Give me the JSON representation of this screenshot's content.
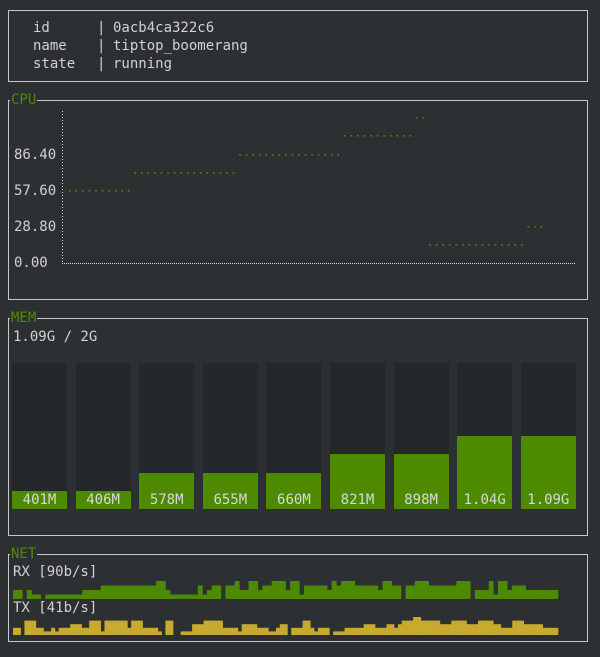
{
  "info": {
    "rows": [
      {
        "key": "id",
        "value": "0acb4ca322c6"
      },
      {
        "key": "name",
        "value": "tiptop_boomerang"
      },
      {
        "key": "state",
        "value": "running"
      }
    ]
  },
  "cpu": {
    "title": "CPU",
    "color": "#4e8a00",
    "chart_data": {
      "type": "scatter",
      "title": "CPU",
      "y_ticks": [
        "0.00",
        "28.80",
        "57.60",
        "86.40"
      ],
      "ylim": [
        0,
        120
      ],
      "values": [
        57.6,
        57.6,
        57.6,
        57.6,
        57.6,
        57.6,
        57.6,
        57.6,
        57.6,
        57.6,
        72,
        72,
        72,
        72,
        72,
        72,
        72,
        72,
        72,
        72,
        72,
        72,
        72,
        72,
        72,
        72,
        86.4,
        86.4,
        86.4,
        86.4,
        86.4,
        86.4,
        86.4,
        86.4,
        86.4,
        86.4,
        86.4,
        86.4,
        86.4,
        86.4,
        86.4,
        86.4,
        101.6,
        101.6,
        101.6,
        101.6,
        101.6,
        101.6,
        101.6,
        101.6,
        101.6,
        101.6,
        101.6,
        116,
        116,
        14.4,
        14.4,
        14.4,
        14.4,
        14.4,
        14.4,
        14.4,
        14.4,
        14.4,
        14.4,
        14.4,
        14.4,
        14.4,
        14.4,
        14.4,
        28.8,
        28.8,
        28.8
      ]
    }
  },
  "mem": {
    "title": "MEM",
    "summary": "1.09G / 2G",
    "limit_mb": 2048,
    "color": "#4e8a00",
    "bars": [
      {
        "label": "401M",
        "mb": 401
      },
      {
        "label": "406M",
        "mb": 406
      },
      {
        "label": "578M",
        "mb": 578
      },
      {
        "label": "655M",
        "mb": 655
      },
      {
        "label": "660M",
        "mb": 660
      },
      {
        "label": "821M",
        "mb": 821
      },
      {
        "label": "898M",
        "mb": 898
      },
      {
        "label": "1.04G",
        "mb": 1065
      },
      {
        "label": "1.09G",
        "mb": 1116
      }
    ]
  },
  "net": {
    "title": "NET",
    "rx_label": "RX [90b/s]",
    "tx_label": "TX [41b/s]",
    "rx_color": "#4e8a00",
    "tx_color": "#c8aa2e",
    "rx": [
      2,
      2,
      0,
      2,
      1,
      1,
      0,
      1,
      1,
      1,
      1,
      1,
      1,
      1,
      1,
      2,
      2,
      2,
      2,
      3,
      3,
      3,
      3,
      3,
      3,
      3,
      3,
      3,
      3,
      3,
      3,
      4,
      4,
      2,
      1,
      1,
      1,
      1,
      1,
      1,
      3,
      1,
      2,
      3,
      3,
      0,
      3,
      3,
      4,
      2,
      2,
      4,
      4,
      2,
      3,
      3,
      4,
      4,
      4,
      2,
      4,
      4,
      1,
      3,
      3,
      3,
      3,
      3,
      2,
      4,
      3,
      4,
      4,
      4,
      3,
      3,
      3,
      3,
      3,
      2,
      4,
      4,
      3,
      3,
      0,
      3,
      3,
      4,
      4,
      4,
      3,
      3,
      3,
      3,
      3,
      3,
      4,
      4,
      4,
      0,
      2,
      2,
      2,
      4,
      1,
      4,
      4,
      2,
      3,
      3,
      3,
      2,
      2,
      2,
      2,
      2,
      2,
      2
    ],
    "tx": [
      2,
      2,
      0,
      4,
      4,
      4,
      2,
      2,
      1,
      1,
      2,
      1,
      2,
      2,
      2,
      3,
      3,
      3,
      2,
      2,
      4,
      4,
      4,
      1,
      4,
      4,
      4,
      4,
      4,
      4,
      2,
      4,
      4,
      4,
      2,
      2,
      2,
      2,
      1,
      0,
      4,
      4,
      0,
      0,
      1,
      1,
      1,
      3,
      3,
      3,
      4,
      4,
      4,
      4,
      4,
      2,
      2,
      2,
      2,
      1,
      3,
      3,
      3,
      3,
      2,
      2,
      2,
      1,
      1,
      2,
      3,
      3,
      0,
      2,
      2,
      2,
      4,
      4,
      2,
      1,
      2,
      2,
      2,
      0,
      1,
      1,
      1,
      2,
      2,
      2,
      2,
      2,
      3,
      3,
      3,
      2,
      2,
      2,
      3,
      3,
      2,
      3,
      4,
      4,
      4,
      5,
      5,
      4,
      4,
      4,
      4,
      4,
      3,
      3,
      3,
      4,
      4,
      4,
      4,
      3,
      3,
      3,
      4,
      4,
      4,
      4,
      3,
      3,
      2,
      2,
      2,
      4,
      4,
      4,
      3,
      3,
      3,
      3,
      3,
      2,
      2,
      2,
      2
    ]
  }
}
